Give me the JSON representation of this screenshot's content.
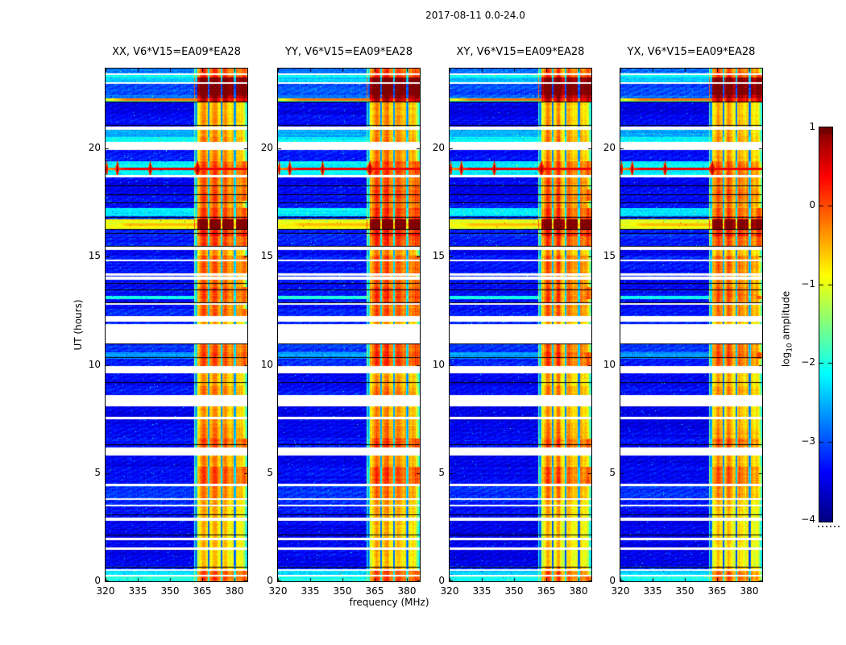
{
  "figure": {
    "title": "2017-08-11 0.0-24.0",
    "xlabel": "frequency (MHz)",
    "ylabel": "UT (hours)",
    "background": "#ffffff"
  },
  "axes": {
    "x_tick_labels": [
      "320",
      "335",
      "350",
      "365",
      "380"
    ],
    "x_tick_values": [
      320,
      335,
      350,
      365,
      380
    ],
    "y_tick_labels": [
      "0",
      "5",
      "10",
      "15",
      "20"
    ],
    "y_tick_values": [
      0,
      5,
      10,
      15,
      20
    ],
    "x_range": [
      320,
      386
    ],
    "y_range": [
      0,
      23.7
    ]
  },
  "colorbar": {
    "label_pre": "log",
    "label_sub": "10",
    "label_post": " amplitude",
    "tick_labels": [
      "1",
      "0",
      "−1",
      "−2",
      "−3",
      "−4"
    ],
    "tick_values": [
      1,
      0,
      -1,
      -2,
      -3,
      -4
    ],
    "range": [
      -4,
      1
    ],
    "colormap": "jet"
  },
  "panels": [
    {
      "title": "XX, V6*V15=EA09*EA28",
      "seed": 101,
      "band_offset": 0.0,
      "bg_offset": 0.0
    },
    {
      "title": "YY, V6*V15=EA09*EA28",
      "seed": 202,
      "band_offset": 0.05,
      "bg_offset": 0.0
    },
    {
      "title": "XY, V6*V15=EA09*EA28",
      "seed": 303,
      "band_offset": -0.1,
      "bg_offset": -0.04
    },
    {
      "title": "YX, V6*V15=EA09*EA28",
      "seed": 404,
      "band_offset": -0.12,
      "bg_offset": -0.04
    }
  ],
  "chart_data": {
    "type": "heatmap",
    "title": "2017-08-11 0.0-24.0",
    "xlabel": "frequency (MHz)",
    "ylabel": "UT (hours)",
    "value_label": "log10 amplitude",
    "x_range_mhz": [
      320,
      386
    ],
    "y_range_hours": [
      0,
      23.7
    ],
    "color_range": [
      -4,
      1
    ],
    "colormap": "jet",
    "rfi_band_mhz": {
      "start": 361.2,
      "end": 385.2,
      "dividers": [
        362.1,
        368.0,
        374.0,
        380.2
      ],
      "block_centers": [
        365.2,
        371.0,
        377.1,
        382.8
      ]
    },
    "segments": [
      [
        0.0,
        0.22,
        -2.0,
        -0.35
      ],
      [
        0.3,
        0.48,
        -2.3,
        -0.4
      ],
      [
        0.56,
        0.7,
        -3.2,
        -0.8
      ],
      [
        0.7,
        1.45,
        -3.45,
        -1.0
      ],
      [
        1.58,
        1.9,
        -3.4,
        -0.9
      ],
      [
        2.0,
        2.8,
        -3.45,
        -0.95
      ],
      [
        2.93,
        3.45,
        -3.3,
        -0.85
      ],
      [
        3.55,
        3.75,
        -3.2,
        -0.8
      ],
      [
        3.85,
        4.4,
        -3.1,
        -0.6
      ],
      [
        4.5,
        5.3,
        -3.35,
        -0.35
      ],
      [
        5.3,
        5.82,
        -3.45,
        -0.7
      ],
      [
        6.2,
        6.6,
        -3.3,
        -0.35
      ],
      [
        6.6,
        7.15,
        -3.4,
        -0.6
      ],
      [
        7.15,
        7.5,
        -3.45,
        -0.7
      ],
      [
        7.6,
        8.1,
        -3.45,
        -0.75
      ],
      [
        8.6,
        9.0,
        -3.3,
        -0.6
      ],
      [
        9.0,
        9.6,
        -3.4,
        -0.8
      ],
      [
        9.95,
        10.3,
        -3.2,
        -0.35
      ],
      [
        10.3,
        10.6,
        -2.6,
        -0.3
      ],
      [
        10.6,
        11.0,
        -3.1,
        -0.4
      ],
      [
        11.9,
        12.0,
        -3.2,
        -0.8
      ],
      [
        12.25,
        12.6,
        -3.2,
        -0.45
      ],
      [
        12.6,
        12.8,
        -3.35,
        -0.5
      ],
      [
        12.88,
        13.05,
        -3.3,
        -0.4
      ],
      [
        13.05,
        13.18,
        -2.0,
        -0.3
      ],
      [
        13.18,
        13.6,
        -3.3,
        -0.35
      ],
      [
        13.6,
        13.95,
        -3.35,
        -0.5
      ],
      [
        14.08,
        14.12,
        -3.3,
        -0.6
      ],
      [
        14.22,
        14.78,
        -3.3,
        -0.45
      ],
      [
        14.85,
        15.05,
        -3.2,
        -0.4
      ],
      [
        15.05,
        15.3,
        -3.4,
        -0.7
      ],
      [
        15.5,
        15.95,
        -3.25,
        -0.3
      ],
      [
        15.95,
        16.08,
        -3.1,
        0.1
      ],
      [
        16.08,
        16.3,
        -3.2,
        -0.15
      ],
      [
        16.3,
        16.72,
        -0.95,
        1.0
      ],
      [
        16.72,
        16.88,
        -3.0,
        -0.1
      ],
      [
        16.88,
        17.25,
        -2.2,
        -0.3
      ],
      [
        17.25,
        17.6,
        -3.3,
        -0.5
      ],
      [
        17.6,
        18.1,
        -3.35,
        -0.35
      ],
      [
        18.1,
        18.66,
        -3.4,
        -0.45
      ],
      [
        18.78,
        19.42,
        -2.15,
        -0.35
      ],
      [
        19.42,
        19.95,
        -3.3,
        -0.7
      ],
      [
        20.3,
        20.55,
        -2.1,
        -0.6
      ],
      [
        20.55,
        20.85,
        -2.5,
        -0.7
      ],
      [
        21.0,
        21.55,
        -3.35,
        -0.75
      ],
      [
        21.55,
        22.18,
        -3.45,
        -0.8
      ],
      [
        22.18,
        22.32,
        -1.8,
        0.3
      ],
      [
        22.32,
        22.48,
        -2.8,
        0.6
      ],
      [
        22.48,
        23.0,
        -3.0,
        0.95
      ],
      [
        23.07,
        23.3,
        -2.4,
        0.8
      ],
      [
        23.3,
        23.42,
        -2.1,
        -0.2
      ],
      [
        23.48,
        23.7,
        -2.8,
        -0.35
      ]
    ],
    "gaps": [
      [
        0.22,
        0.3
      ],
      [
        0.48,
        0.56
      ],
      [
        1.45,
        1.58
      ],
      [
        1.9,
        2.0
      ],
      [
        2.8,
        2.93
      ],
      [
        3.45,
        3.55
      ],
      [
        3.75,
        3.85
      ],
      [
        4.4,
        4.5
      ],
      [
        5.82,
        6.2
      ],
      [
        7.5,
        7.6
      ],
      [
        8.1,
        8.6
      ],
      [
        9.6,
        9.95
      ],
      [
        11.0,
        11.9
      ],
      [
        12.0,
        12.25
      ],
      [
        12.8,
        12.88
      ],
      [
        13.95,
        14.08
      ],
      [
        14.12,
        14.22
      ],
      [
        14.78,
        14.85
      ],
      [
        15.3,
        15.5
      ],
      [
        18.66,
        18.78
      ],
      [
        19.95,
        20.3
      ],
      [
        20.85,
        21.0
      ],
      [
        23.0,
        23.07
      ],
      [
        23.42,
        23.48
      ]
    ],
    "black_lines": [
      0.67,
      2.16,
      3.1,
      6.35,
      9.2,
      10.35,
      10.98,
      12.9,
      13.5,
      13.8,
      15.52,
      16.1,
      16.29,
      16.86,
      17.5,
      17.9,
      18.3,
      21.1,
      22.17
    ],
    "bright_lines": [
      [
        16.5,
        -0.55
      ],
      [
        16.4,
        -0.8
      ],
      [
        19.05,
        0.45
      ],
      [
        22.25,
        -0.2
      ]
    ],
    "flare": {
      "t_center": 19.05,
      "t0": 18.72,
      "t1": 19.45,
      "spike_freqs": [
        320.6,
        325.5,
        340.8,
        362.8
      ],
      "spike_amp": 0.95,
      "line_amp": 0.45
    },
    "background_level": -3.4,
    "noise_sigma": 0.25
  }
}
